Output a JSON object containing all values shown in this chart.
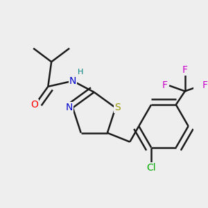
{
  "background_color": "#eeeeee",
  "bond_color": "#1a1a1a",
  "bond_width": 1.8,
  "atom_colors": {
    "O": "#ff0000",
    "N": "#0000cc",
    "H": "#008080",
    "S": "#999900",
    "Cl": "#00aa00",
    "F": "#cc00cc",
    "C": "#1a1a1a"
  },
  "font_size": 10
}
